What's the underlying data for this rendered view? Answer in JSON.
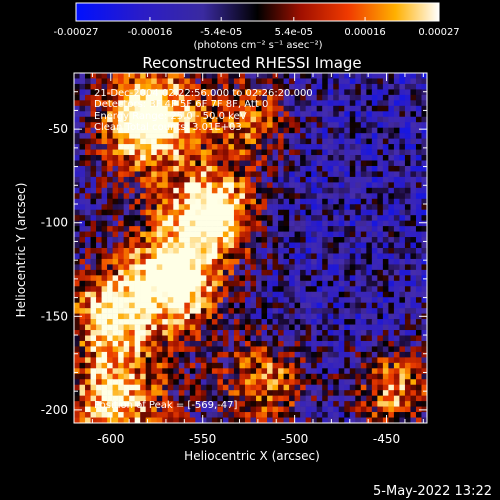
{
  "chart_data": {
    "type": "heatmap",
    "title": "Reconstructed RHESSI Image",
    "xlabel": "Heliocentric X (arcsec)",
    "ylabel": "Heliocentric Y (arcsec)",
    "xlim": [
      -620,
      -428
    ],
    "ylim": [
      -207,
      -20
    ],
    "x_ticks": [
      -600,
      -550,
      -500,
      -450
    ],
    "y_ticks": [
      -200,
      -150,
      -100,
      -50
    ],
    "x_tick_labels": [
      "-600",
      "-550",
      "-500",
      "-450"
    ],
    "y_tick_labels": [
      "-200",
      "-150",
      "-100",
      "-50"
    ],
    "colorbar": {
      "range": [
        -0.00027,
        0.00027
      ],
      "ticks": [
        -0.00027,
        -0.00016,
        -5.4e-05,
        5.4e-05,
        0.00016,
        0.00027
      ],
      "tick_labels": [
        "-0.00027",
        "-0.00016",
        "-5.4e-05",
        "5.4e-05",
        "0.00016",
        "0.00027"
      ],
      "unit_label": "(photons cm⁻² s⁻¹ asec⁻²)"
    },
    "annotations": {
      "time": "21-Dec-2004 02:22:56.000 to 02:26:20.000",
      "detectors": "Detectors: 3F 4F 5F 6F 7F 8F, Att 0",
      "energy": "Energy Range: 25.0 - 50.0 keV",
      "clean": "Clean    Total counts: 3.01E+03",
      "peak": "Position of Peak = [-569,-47]"
    },
    "bright_sources": [
      {
        "x": -580,
        "y": -45,
        "level": 1.0
      },
      {
        "x": -545,
        "y": -95,
        "level": 0.95
      },
      {
        "x": -565,
        "y": -130,
        "level": 0.9
      },
      {
        "x": -600,
        "y": -150,
        "level": 0.75
      },
      {
        "x": -600,
        "y": -195,
        "level": 0.7
      },
      {
        "x": -515,
        "y": -185,
        "level": 0.55
      },
      {
        "x": -445,
        "y": -190,
        "level": 0.6
      },
      {
        "x": -525,
        "y": -45,
        "level": 0.5
      }
    ],
    "footer_date": "5-May-2022 13:22"
  }
}
